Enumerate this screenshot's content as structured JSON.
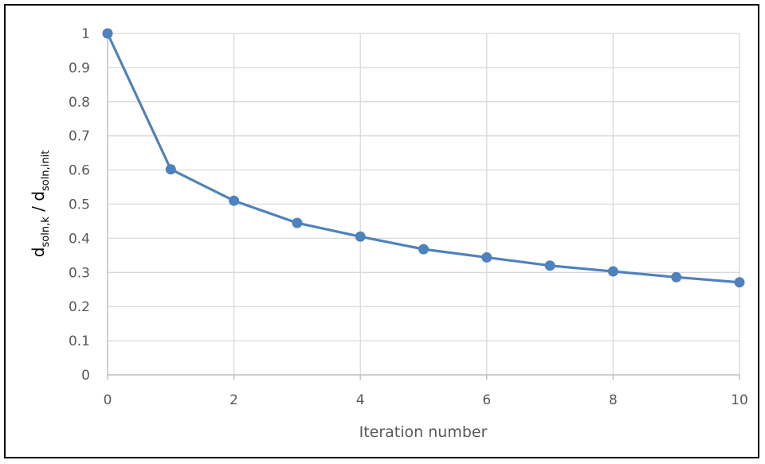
{
  "chart_data": {
    "type": "line",
    "x": [
      0,
      1,
      2,
      3,
      4,
      5,
      6,
      7,
      8,
      9,
      10
    ],
    "series": [
      {
        "values": [
          1.0,
          0.602,
          0.51,
          0.445,
          0.405,
          0.368,
          0.344,
          0.32,
          0.303,
          0.286,
          0.271
        ]
      }
    ],
    "title": "",
    "xlabel": "Iteration number",
    "ylabel": {
      "part1": "d",
      "part1_sub": "soln,k",
      "sep": " / ",
      "part2": "d",
      "part2_sub": "soln,init"
    },
    "xlim": [
      0,
      10
    ],
    "ylim": [
      0,
      1
    ],
    "x_ticks": [
      "0",
      "2",
      "4",
      "6",
      "8",
      "10"
    ],
    "x_tick_values": [
      0,
      2,
      4,
      6,
      8,
      10
    ],
    "y_ticks": [
      "0",
      "0.1",
      "0.2",
      "0.3",
      "0.4",
      "0.5",
      "0.6",
      "0.7",
      "0.8",
      "0.9",
      "1"
    ],
    "y_tick_values": [
      0,
      0.1,
      0.2,
      0.3,
      0.4,
      0.5,
      0.6,
      0.7,
      0.8,
      0.9,
      1
    ],
    "grid": true,
    "legend": "none",
    "colors": {
      "series": "#4f81bd",
      "grid": "#d9d9d9",
      "axis": "#bfbfbf",
      "text": "#595959"
    }
  }
}
